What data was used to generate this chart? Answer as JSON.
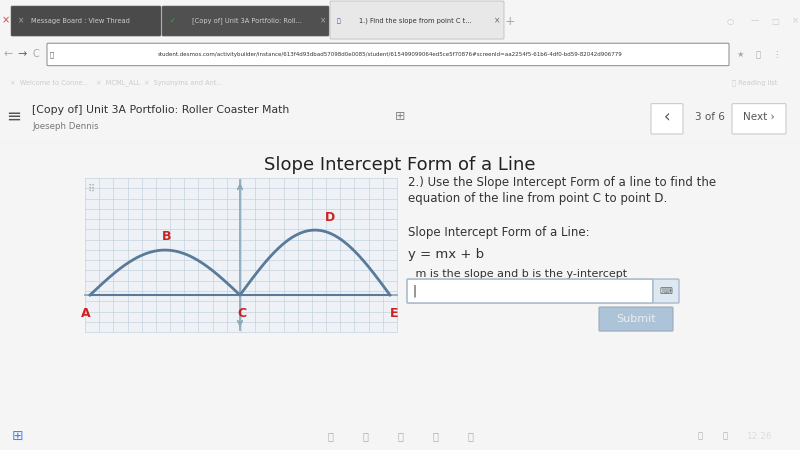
{
  "page_title": "Slope Intercept Form of a Line",
  "nav_title": "[Copy of] Unit 3A Portfolio: Roller Coaster Math",
  "nav_subtitle": "Joeseph Dennis",
  "nav_page": "3 of 6",
  "question_line1": "2.) Use the Slope Intercept Form of a line to find the",
  "question_line2": "equation of the line from point C to point D.",
  "form_label": "Slope Intercept Form of a Line:",
  "formula": "y = mx + b",
  "hint": " m is the slope and b is the y-intercept",
  "submit_btn": "Submit",
  "bg_color": "#f5f5f5",
  "white": "#ffffff",
  "chrome_dark": "#2a2a2a",
  "chrome_mid": "#3c3c3c",
  "chrome_tab_active": "#e8e8e8",
  "chrome_tab_inactive": "#4a4a4a",
  "bookmarks_bg": "#3a3a3a",
  "nav_bg": "#f0f0f0",
  "nav_border": "#d0d0d0",
  "graph_bg": "#eef2f6",
  "grid_color": "#c5d3df",
  "curve_color": "#5a7a9a",
  "axis_color": "#8aaabb",
  "label_color": "#cc2222",
  "text_color": "#333333",
  "input_bg": "#ffffff",
  "input_border": "#aabbcc",
  "submit_bg": "#adc4d8",
  "submit_text": "#e8eef2",
  "taskbar_bg": "#1a1a2e",
  "point_labels": [
    "A",
    "B",
    "C",
    "D",
    "E"
  ],
  "tab1_text": "Message Board : View Thread",
  "tab2_text": "[Copy of] Unit 3A Portfolio: Roll...",
  "tab3_text": "1.) Find the slope from point C t...",
  "url_text": "student.desmos.com/activitybuilder/instance/613f4d93dbad57098d0e0085/student/615499099064ed5ce5f70876#screenId=aa2254f5-61b6-4df0-bd59-82042d906779",
  "bookmarks": [
    "Welcome to Conne...",
    "MCML_ALL",
    "Synonyms and Ant..."
  ],
  "reading_list": "Reading list",
  "time_text": "12:26"
}
